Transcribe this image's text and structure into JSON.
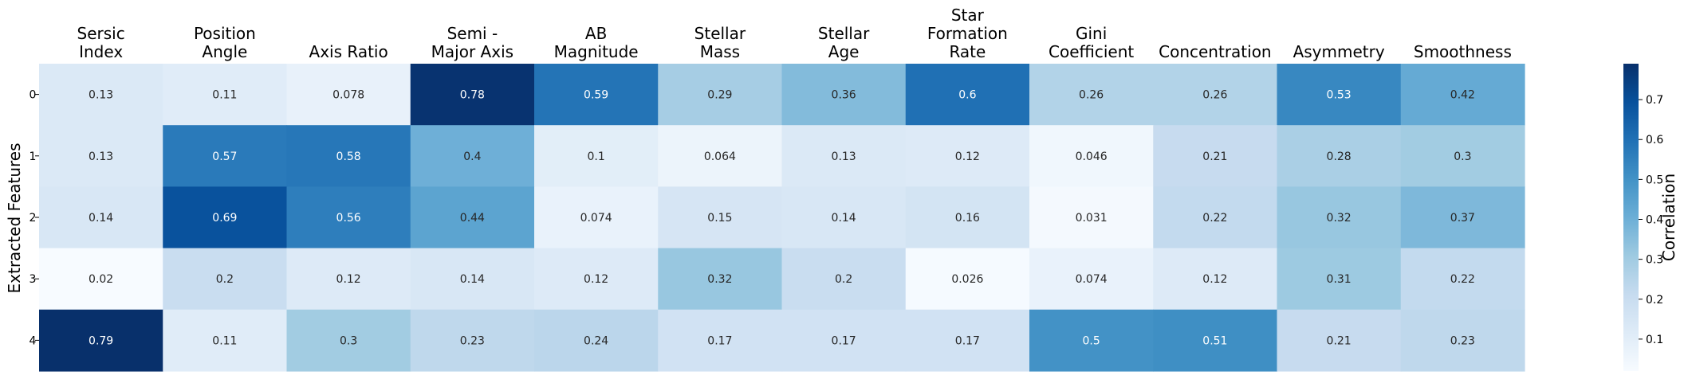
{
  "chart_data": {
    "type": "heatmap",
    "title": "",
    "columns": [
      [
        "Sersic",
        "Index"
      ],
      [
        "Position",
        "Angle"
      ],
      [
        "Axis Ratio"
      ],
      [
        "Semi -",
        "Major Axis"
      ],
      [
        "AB",
        "Magnitude"
      ],
      [
        "Stellar",
        "Mass"
      ],
      [
        "Stellar",
        "Age"
      ],
      [
        "Star",
        "Formation",
        "Rate"
      ],
      [
        "Gini",
        "Coefficient"
      ],
      [
        "Concentration"
      ],
      [
        "Asymmetry"
      ],
      [
        "Smoothness"
      ]
    ],
    "rows": [
      "0",
      "1",
      "2",
      "3",
      "4"
    ],
    "ylabel": "Extracted Features",
    "values": [
      [
        "0.13",
        "0.11",
        "0.078",
        "0.78",
        "0.59",
        "0.29",
        "0.36",
        "0.6",
        "0.26",
        "0.26",
        "0.53",
        "0.42"
      ],
      [
        "0.13",
        "0.57",
        "0.58",
        "0.4",
        "0.1",
        "0.064",
        "0.13",
        "0.12",
        "0.046",
        "0.21",
        "0.28",
        "0.3"
      ],
      [
        "0.14",
        "0.69",
        "0.56",
        "0.44",
        "0.074",
        "0.15",
        "0.14",
        "0.16",
        "0.031",
        "0.22",
        "0.32",
        "0.37"
      ],
      [
        "0.02",
        "0.2",
        "0.12",
        "0.14",
        "0.12",
        "0.32",
        "0.2",
        "0.026",
        "0.074",
        "0.12",
        "0.31",
        "0.22"
      ],
      [
        "0.79",
        "0.11",
        "0.3",
        "0.23",
        "0.24",
        "0.17",
        "0.17",
        "0.17",
        "0.5",
        "0.51",
        "0.21",
        "0.23"
      ]
    ],
    "colorbar": {
      "label": "Correlation",
      "ticks": [
        "0.1",
        "0.2",
        "0.3",
        "0.4",
        "0.5",
        "0.6",
        "0.7"
      ],
      "vmin": 0.02,
      "vmax": 0.79
    },
    "colormap": [
      "#f7fbff",
      "#deebf7",
      "#c6dbef",
      "#9ecae1",
      "#6baed6",
      "#4292c6",
      "#2171b5",
      "#08519c",
      "#08306b"
    ]
  }
}
